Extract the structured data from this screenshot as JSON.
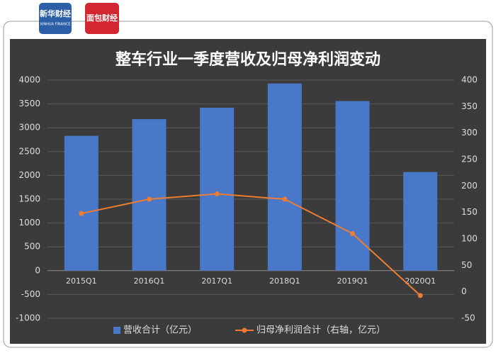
{
  "header": {
    "logo_left_title": "新华财经",
    "logo_left_subtitle": "XINHUA FINANCE",
    "logo_right_title": "面包财经"
  },
  "chart_data": {
    "type": "bar_line",
    "title": "整车行业一季度营收及归母净利润变动",
    "categories": [
      "2015Q1",
      "2016Q1",
      "2017Q1",
      "2018Q1",
      "2019Q1",
      "2020Q1"
    ],
    "series": [
      {
        "name": "营收合计（亿元）",
        "type": "bar",
        "color": "#4a78c8",
        "values": [
          2830,
          3180,
          3420,
          3930,
          3560,
          2070
        ]
      },
      {
        "name": "归母净利润合计（右轴，亿元）",
        "type": "line",
        "axis": "y2",
        "color": "#ed7d31",
        "values": [
          148,
          175,
          185,
          175,
          110,
          -7
        ]
      }
    ],
    "ylim": [
      -1000,
      4000
    ],
    "yticks": [
      -1000,
      -500,
      0,
      500,
      1000,
      1500,
      2000,
      2500,
      3000,
      3500,
      4000
    ],
    "y2lim": [
      -50,
      400
    ],
    "y2ticks": [
      -50,
      0,
      50,
      100,
      150,
      200,
      250,
      300,
      350,
      400
    ],
    "grid": true,
    "legend": "bottom"
  }
}
